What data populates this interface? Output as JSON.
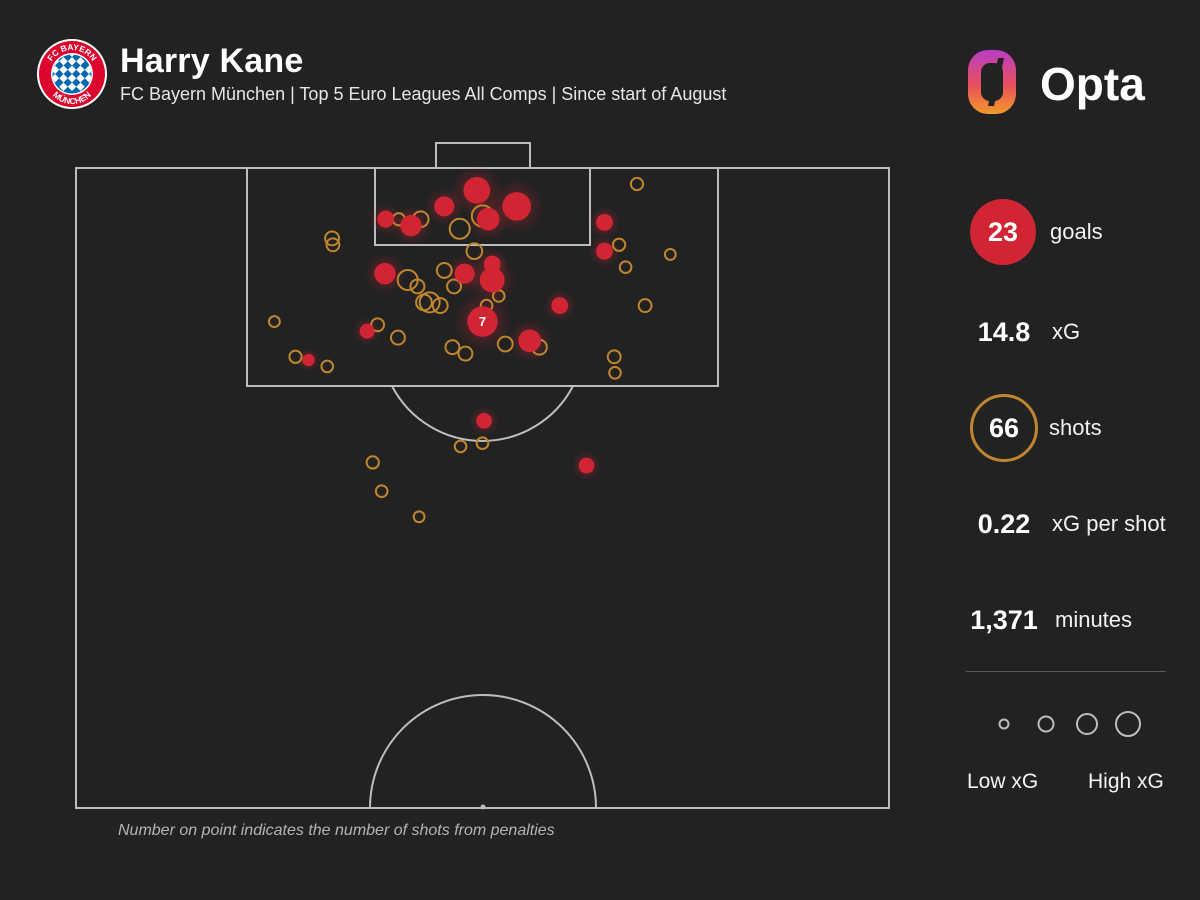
{
  "header": {
    "title": "Harry Kane",
    "subtitle": "FC Bayern München | Top 5 Euro Leagues All Comps | Since start of August",
    "crest_text_top": "FC BAYERN",
    "crest_text_bottom": "MÜNCHEN",
    "brand": "Opta"
  },
  "stats": {
    "goals_value": "23",
    "goals_label": "goals",
    "xg_value": "14.8",
    "xg_label": "xG",
    "shots_value": "66",
    "shots_label": "shots",
    "xg_per_shot_value": "0.22",
    "xg_per_shot_label": "xG per shot",
    "minutes_value": "1,371",
    "minutes_label": "minutes"
  },
  "legend": {
    "low_label": "Low xG",
    "high_label": "High xG"
  },
  "footnote": "Number on point indicates the number of shots from penalties",
  "colors": {
    "background": "#222222",
    "goal": "#d22533",
    "shot": "#c0862e",
    "lines": "#bdbdbd"
  },
  "chart_data": {
    "type": "scatter",
    "title": "Harry Kane",
    "x": "pitch width (0-100, left to right)",
    "y": "distance from attacking goal line (0-100 = goal line to halfway line)",
    "size": "xG (0-1)",
    "series": [
      {
        "name": "goals",
        "points": [
          {
            "x": 49.3,
            "y": 3.5,
            "xg": 0.55
          },
          {
            "x": 54.2,
            "y": 6.0,
            "xg": 0.65
          },
          {
            "x": 45.3,
            "y": 6.0,
            "xg": 0.25
          },
          {
            "x": 38.1,
            "y": 8.0,
            "xg": 0.15
          },
          {
            "x": 41.2,
            "y": 9.0,
            "xg": 0.3
          },
          {
            "x": 50.7,
            "y": 8.0,
            "xg": 0.35
          },
          {
            "x": 65.0,
            "y": 8.5,
            "xg": 0.15
          },
          {
            "x": 65.0,
            "y": 13.0,
            "xg": 0.15
          },
          {
            "x": 38.0,
            "y": 16.5,
            "xg": 0.3
          },
          {
            "x": 47.8,
            "y": 16.5,
            "xg": 0.25
          },
          {
            "x": 51.2,
            "y": 15.0,
            "xg": 0.15
          },
          {
            "x": 51.2,
            "y": 17.5,
            "xg": 0.45
          },
          {
            "x": 59.5,
            "y": 21.5,
            "xg": 0.15
          },
          {
            "x": 50.0,
            "y": 24.0,
            "xg": 0.76,
            "label": "7"
          },
          {
            "x": 55.8,
            "y": 27.0,
            "xg": 0.35
          },
          {
            "x": 35.8,
            "y": 25.5,
            "xg": 0.1
          },
          {
            "x": 28.6,
            "y": 30.0,
            "xg": 0.05
          },
          {
            "x": 50.2,
            "y": 39.5,
            "xg": 0.12
          },
          {
            "x": 62.8,
            "y": 46.5,
            "xg": 0.12
          }
        ]
      },
      {
        "name": "shots",
        "points": [
          {
            "x": 69.0,
            "y": 2.5,
            "xg": 0.05
          },
          {
            "x": 39.7,
            "y": 8.0,
            "xg": 0.05
          },
          {
            "x": 42.4,
            "y": 8.0,
            "xg": 0.12
          },
          {
            "x": 47.2,
            "y": 9.5,
            "xg": 0.25
          },
          {
            "x": 50.0,
            "y": 7.5,
            "xg": 0.3
          },
          {
            "x": 31.5,
            "y": 11.0,
            "xg": 0.08
          },
          {
            "x": 31.6,
            "y": 12.0,
            "xg": 0.06
          },
          {
            "x": 49.0,
            "y": 13.0,
            "xg": 0.12
          },
          {
            "x": 66.8,
            "y": 12.0,
            "xg": 0.05
          },
          {
            "x": 73.1,
            "y": 13.5,
            "xg": 0.03
          },
          {
            "x": 67.6,
            "y": 15.5,
            "xg": 0.04
          },
          {
            "x": 40.8,
            "y": 17.5,
            "xg": 0.25
          },
          {
            "x": 45.3,
            "y": 16.0,
            "xg": 0.1
          },
          {
            "x": 42.0,
            "y": 18.5,
            "xg": 0.08
          },
          {
            "x": 46.5,
            "y": 18.5,
            "xg": 0.08
          },
          {
            "x": 52.0,
            "y": 20.0,
            "xg": 0.04
          },
          {
            "x": 43.5,
            "y": 21.0,
            "xg": 0.25
          },
          {
            "x": 42.8,
            "y": 21.0,
            "xg": 0.12
          },
          {
            "x": 44.8,
            "y": 21.5,
            "xg": 0.1
          },
          {
            "x": 50.5,
            "y": 21.5,
            "xg": 0.04
          },
          {
            "x": 70.0,
            "y": 21.5,
            "xg": 0.06
          },
          {
            "x": 24.4,
            "y": 24.0,
            "xg": 0.03
          },
          {
            "x": 37.1,
            "y": 24.5,
            "xg": 0.06
          },
          {
            "x": 39.6,
            "y": 26.5,
            "xg": 0.08
          },
          {
            "x": 46.3,
            "y": 28.0,
            "xg": 0.08
          },
          {
            "x": 47.9,
            "y": 29.0,
            "xg": 0.08
          },
          {
            "x": 52.8,
            "y": 27.5,
            "xg": 0.1
          },
          {
            "x": 57.0,
            "y": 28.0,
            "xg": 0.1
          },
          {
            "x": 27.0,
            "y": 29.5,
            "xg": 0.05
          },
          {
            "x": 30.9,
            "y": 31.0,
            "xg": 0.04
          },
          {
            "x": 66.2,
            "y": 29.5,
            "xg": 0.06
          },
          {
            "x": 66.3,
            "y": 32.0,
            "xg": 0.04
          },
          {
            "x": 47.3,
            "y": 43.5,
            "xg": 0.04
          },
          {
            "x": 50.0,
            "y": 43.0,
            "xg": 0.04
          },
          {
            "x": 36.5,
            "y": 46.0,
            "xg": 0.05
          },
          {
            "x": 37.6,
            "y": 50.5,
            "xg": 0.04
          },
          {
            "x": 42.2,
            "y": 54.5,
            "xg": 0.03
          }
        ]
      }
    ]
  }
}
